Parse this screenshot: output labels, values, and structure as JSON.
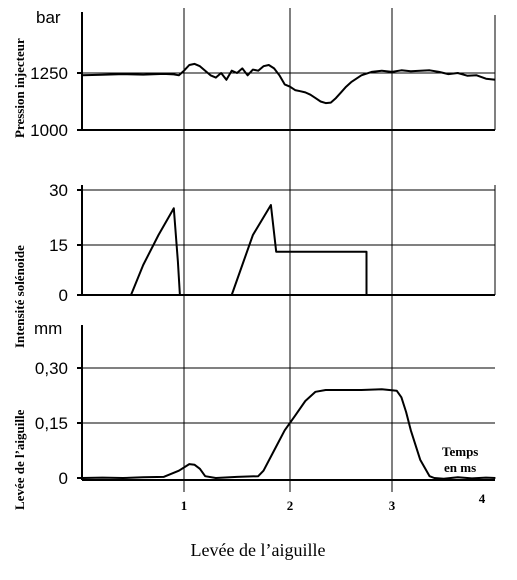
{
  "caption": "Levée de l’aiguille",
  "x_axis": {
    "ticks": [
      "1",
      "2",
      "3",
      "4"
    ],
    "label": "Temps en ms",
    "label_lines": [
      "Temps",
      "en ms"
    ]
  },
  "chart_data": [
    {
      "type": "line",
      "title": "",
      "ylabel": "Pression injecteur",
      "unit": "bar",
      "yticks": [
        "1000",
        "1250"
      ],
      "ylim": [
        1000,
        1500
      ],
      "xlim": [
        0,
        4.1
      ],
      "series": [
        {
          "x": [
            0,
            0.2,
            0.4,
            0.6,
            0.8,
            0.9,
            0.95,
            1.0,
            1.05,
            1.1,
            1.15,
            1.2,
            1.25,
            1.3,
            1.35,
            1.4,
            1.45,
            1.5,
            1.55,
            1.6,
            1.65,
            1.7,
            1.75,
            1.8,
            1.85,
            1.9,
            1.95,
            2.0,
            2.05,
            2.1,
            2.15,
            2.2,
            2.25,
            2.3,
            2.35,
            2.4,
            2.45,
            2.5,
            2.55,
            2.6,
            2.7,
            2.8,
            2.9,
            3.0,
            3.1,
            3.2,
            3.3,
            3.4,
            3.5,
            3.6,
            3.7,
            3.8,
            3.9,
            4.0,
            4.1
          ],
          "y": [
            1240,
            1242,
            1245,
            1243,
            1246,
            1244,
            1240,
            1260,
            1285,
            1290,
            1280,
            1260,
            1240,
            1230,
            1250,
            1220,
            1260,
            1250,
            1270,
            1240,
            1265,
            1260,
            1280,
            1285,
            1270,
            1240,
            1200,
            1190,
            1175,
            1170,
            1165,
            1155,
            1140,
            1125,
            1118,
            1120,
            1140,
            1165,
            1190,
            1210,
            1240,
            1255,
            1260,
            1255,
            1262,
            1258,
            1260,
            1262,
            1255,
            1245,
            1250,
            1238,
            1240,
            1225,
            1220
          ]
        }
      ]
    },
    {
      "type": "line",
      "title": "",
      "ylabel": "Intensité solénoide",
      "unit": "",
      "yticks": [
        "0",
        "15",
        "30"
      ],
      "ylim": [
        0,
        32
      ],
      "xlim": [
        0,
        4.1
      ],
      "series": [
        {
          "x": [
            0.48,
            0.6,
            0.75,
            0.9,
            0.9,
            0.94,
            0.96
          ],
          "y": [
            0,
            9,
            18,
            26,
            26,
            10,
            0
          ]
        },
        {
          "x": [
            1.45,
            1.55,
            1.65,
            1.82,
            1.82,
            1.87,
            2.75,
            2.75
          ],
          "y": [
            0,
            9,
            18,
            27,
            27,
            13,
            13,
            0
          ]
        }
      ]
    },
    {
      "type": "line",
      "title": "",
      "ylabel": "Levée de l’aiguille",
      "unit": "mm",
      "yticks": [
        "0",
        "0,15",
        "0,30"
      ],
      "ylim": [
        0,
        0.38
      ],
      "xlim": [
        0,
        4.1
      ],
      "series": [
        {
          "x": [
            0,
            0.2,
            0.4,
            0.6,
            0.8,
            0.95,
            1.05,
            1.1,
            1.15,
            1.2,
            1.3,
            1.5,
            1.7,
            1.75,
            1.85,
            1.95,
            2.05,
            2.15,
            2.25,
            2.35,
            2.5,
            2.7,
            2.9,
            3.05,
            3.1,
            3.15,
            3.2,
            3.3,
            3.4,
            3.45,
            3.55,
            3.7,
            3.85,
            4.0,
            4.1
          ],
          "y": [
            0,
            0.001,
            0,
            0.002,
            0.003,
            0.02,
            0.038,
            0.036,
            0.025,
            0.005,
            0,
            0.003,
            0.005,
            0.02,
            0.075,
            0.13,
            0.17,
            0.21,
            0.235,
            0.24,
            0.24,
            0.24,
            0.242,
            0.238,
            0.22,
            0.18,
            0.13,
            0.05,
            0.005,
            0,
            -0.002,
            0.002,
            -0.001,
            0.001,
            0
          ]
        }
      ]
    }
  ]
}
